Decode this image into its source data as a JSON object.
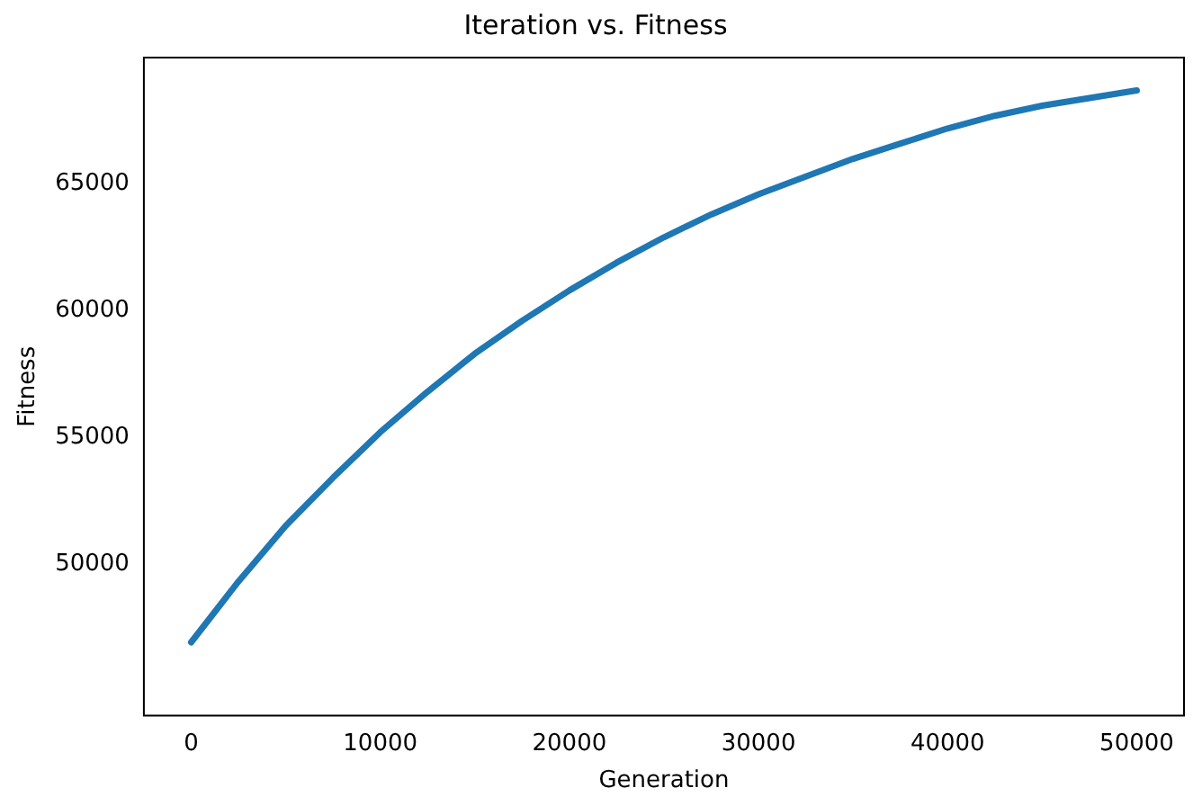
{
  "chart_data": {
    "type": "line",
    "title": "Iteration vs. Fitness",
    "xlabel": "Generation",
    "ylabel": "Fitness",
    "x": [
      0,
      2500,
      5000,
      7500,
      10000,
      12500,
      15000,
      17500,
      20000,
      22500,
      25000,
      27500,
      30000,
      32500,
      35000,
      37500,
      40000,
      42500,
      45000,
      47500,
      50000
    ],
    "series": [
      {
        "color": "#1f77b4",
        "values": [
          46900,
          49300,
          51500,
          53400,
          55200,
          56800,
          58300,
          59600,
          60800,
          61900,
          62900,
          63800,
          64600,
          65300,
          66000,
          66600,
          67200,
          67700,
          68100,
          68400,
          68700
        ]
      }
    ],
    "xlim": [
      -2500,
      52500
    ],
    "xticks": [
      0,
      10000,
      20000,
      30000,
      40000,
      50000
    ],
    "ylim": [
      44000,
      70000
    ],
    "yticks": [
      50000,
      55000,
      60000,
      65000
    ],
    "grid": false,
    "legend": false,
    "marker": "none",
    "line_style": "solid"
  }
}
